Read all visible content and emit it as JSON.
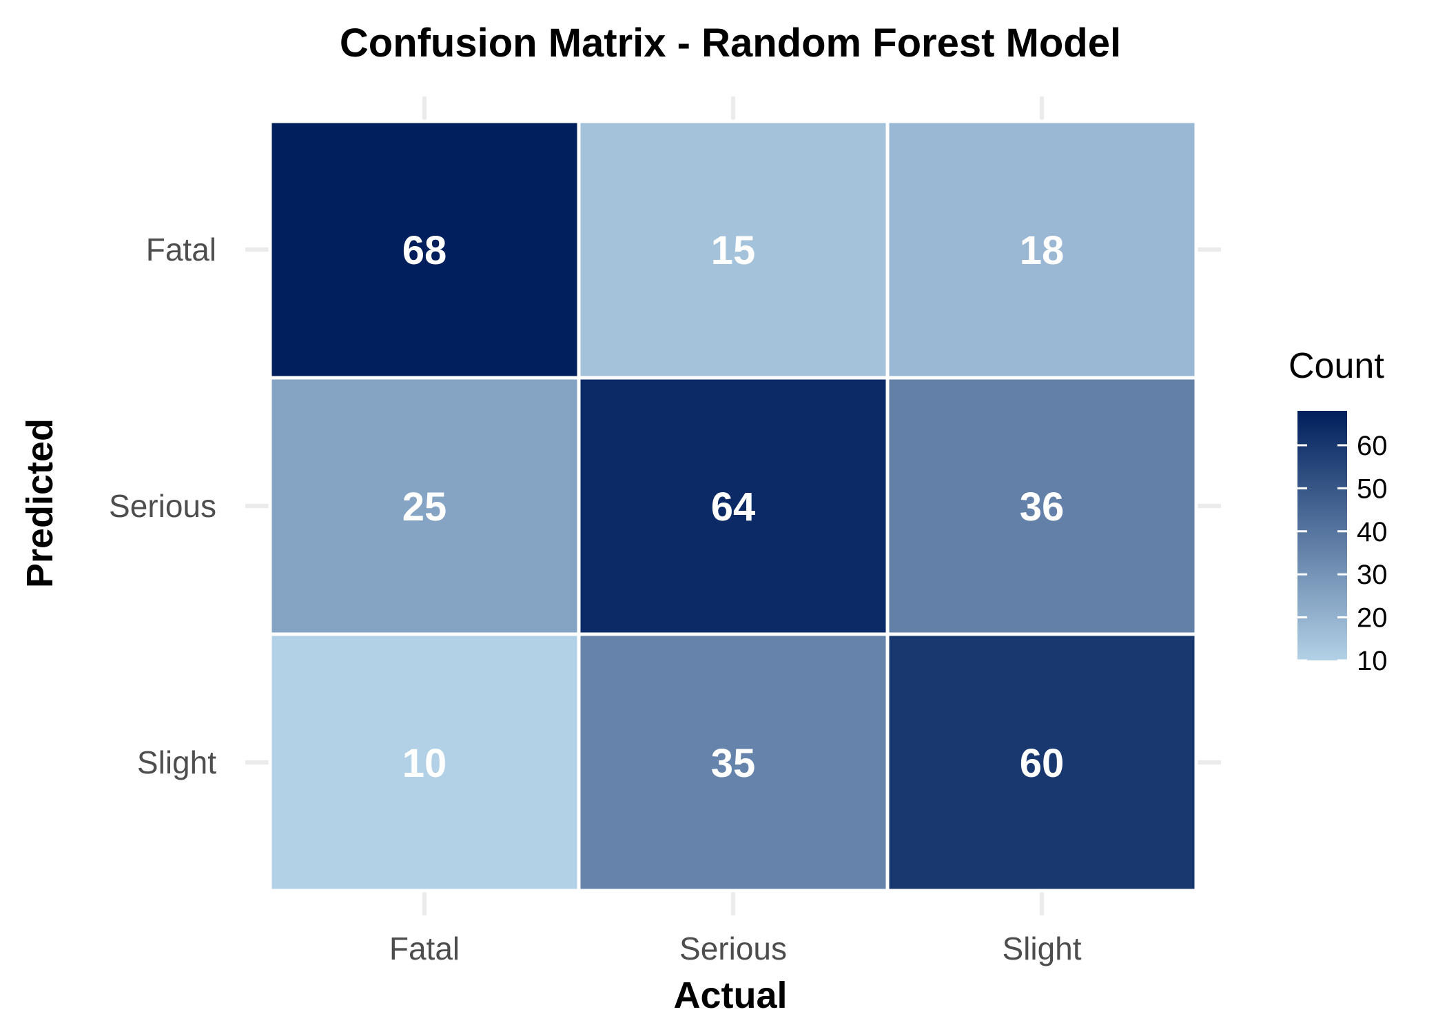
{
  "chart_data": {
    "type": "heatmap",
    "title": "Confusion Matrix - Random Forest Model",
    "xlabel": "Actual",
    "ylabel": "Predicted",
    "x_categories": [
      "Fatal",
      "Serious",
      "Slight"
    ],
    "y_categories": [
      "Fatal",
      "Serious",
      "Slight"
    ],
    "values": [
      [
        68,
        15,
        18
      ],
      [
        25,
        64,
        36
      ],
      [
        10,
        35,
        60
      ]
    ],
    "legend": {
      "title": "Count",
      "ticks": [
        10,
        20,
        30,
        40,
        50,
        60
      ],
      "range": [
        10,
        68
      ],
      "placement": "right",
      "color_low": "#b3d1e6",
      "color_high": "#001f5c"
    },
    "grid": true,
    "grid_color": "#ebebeb"
  }
}
